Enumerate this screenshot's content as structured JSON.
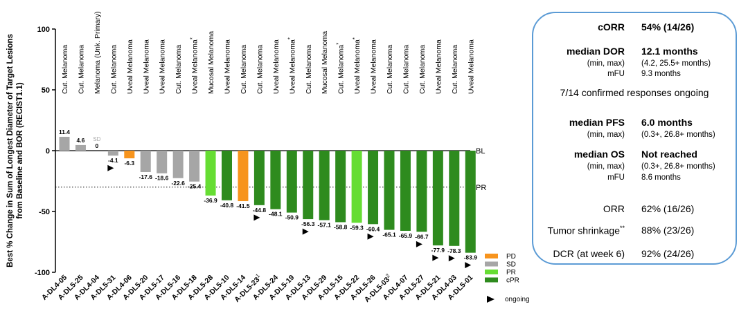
{
  "chart_data": {
    "type": "bar",
    "ylabel": "Best % Change in Sum of Longest Diameter of Target Lesions from Baseline and BOR (RECIST1.1)",
    "ylim": [
      -100,
      100
    ],
    "yticks": [
      100,
      50,
      0,
      -50,
      -100
    ],
    "grid": false,
    "reference_lines": [
      {
        "label": "BL",
        "value": 0,
        "style": "solid"
      },
      {
        "label": "PR",
        "value": -30,
        "style": "dotted"
      }
    ],
    "legend": {
      "placement": "bottom-right",
      "items": [
        {
          "key": "PD",
          "label": "PD",
          "color": "#f7941d"
        },
        {
          "key": "SD",
          "label": "SD",
          "color": "#a6a6a6"
        },
        {
          "key": "PR",
          "label": "PR",
          "color": "#66dd33"
        },
        {
          "key": "cPR",
          "label": "cPR",
          "color": "#2e8b1e"
        }
      ],
      "ongoing_label": "ongoing"
    },
    "bars": [
      {
        "id": "A-DL4-05",
        "diagnosis": "Cut. Melanoma",
        "value": 11.4,
        "label": "11.4",
        "response": "SD",
        "ongoing": false
      },
      {
        "id": "A-DL5-25",
        "diagnosis": "Cut. Melanoma",
        "value": 4.6,
        "label": "4.6",
        "response": "SD",
        "ongoing": false
      },
      {
        "id": "A-DL4-04",
        "diagnosis": "Melanoma (Unk. Primary)",
        "value": 0,
        "label": "0",
        "label_note": "SD",
        "response": "SD",
        "ongoing": false
      },
      {
        "id": "A-DL5-31",
        "diagnosis": "Cut. Melanoma",
        "value": -4.1,
        "label": "-4.1",
        "response": "SD",
        "ongoing": true
      },
      {
        "id": "A-DL4-06",
        "diagnosis": "Uveal Melanoma",
        "value": -6.3,
        "label": "-6.3",
        "response": "PD",
        "ongoing": false
      },
      {
        "id": "A-DL5-20",
        "diagnosis": "Uveal Melanoma",
        "value": -17.6,
        "label": "-17.6",
        "response": "SD",
        "ongoing": false
      },
      {
        "id": "A-DL5-17",
        "diagnosis": "Uveal Melanoma",
        "value": -18.6,
        "label": "-18.6",
        "response": "SD",
        "ongoing": false
      },
      {
        "id": "A-DL5-16",
        "diagnosis": "Cut. Melanoma",
        "value": -22.6,
        "label": "-22.6",
        "response": "SD",
        "ongoing": false
      },
      {
        "id": "A-DL5-18",
        "diagnosis": "Uveal Melanoma",
        "diagnosis_sup": "*",
        "value": -25.4,
        "label": "-25.4",
        "response": "SD",
        "ongoing": false
      },
      {
        "id": "A-DL5-28",
        "diagnosis": "Mucosal Melanoma",
        "value": -36.9,
        "label": "-36.9",
        "response": "PR",
        "ongoing": false
      },
      {
        "id": "A-DL5-10",
        "diagnosis": "Uveal Melanoma",
        "value": -40.8,
        "label": "-40.8",
        "response": "cPR",
        "ongoing": false
      },
      {
        "id": "A-DL5-14",
        "diagnosis": "Cut. Melanoma",
        "value": -41.5,
        "label": "-41.5",
        "response": "PD",
        "ongoing": false
      },
      {
        "id": "A-DL5-23",
        "id_sup": "1",
        "diagnosis": "Cut. Melanoma",
        "value": -44.8,
        "label": "-44.8",
        "response": "cPR",
        "ongoing": true
      },
      {
        "id": "A-DL5-24",
        "diagnosis": "Uveal Melanoma",
        "value": -48.1,
        "label": "-48.1",
        "response": "cPR",
        "ongoing": false
      },
      {
        "id": "A-DL5-19",
        "diagnosis": "Uveal Melanoma",
        "diagnosis_sup": "*",
        "value": -50.9,
        "label": "-50.9",
        "response": "cPR",
        "ongoing": false
      },
      {
        "id": "A-DL5-13",
        "diagnosis": "Cut. Melanoma",
        "value": -56.3,
        "label": "-56.3",
        "response": "cPR",
        "ongoing": true
      },
      {
        "id": "A-DL5-29",
        "diagnosis": "Mucosal Melanoma",
        "value": -57.1,
        "label": "-57.1",
        "response": "cPR",
        "ongoing": false
      },
      {
        "id": "A-DL5-15",
        "diagnosis": "Cut. Melanoma",
        "diagnosis_sup": "*",
        "value": -58.8,
        "label": "-58.8",
        "response": "cPR",
        "ongoing": false
      },
      {
        "id": "A-DL5-22",
        "diagnosis": "Uveal Melanoma",
        "diagnosis_sup": "*",
        "value": -59.3,
        "label": "-59.3",
        "response": "PR",
        "ongoing": false
      },
      {
        "id": "A-DL5-26",
        "diagnosis": "Uveal Melanoma",
        "value": -60.4,
        "label": "-60.4",
        "response": "cPR",
        "ongoing": true
      },
      {
        "id": "A-DL5-03",
        "id_sup": "2",
        "diagnosis": "Cut. Melanoma",
        "value": -65.1,
        "label": "-65.1",
        "response": "cPR",
        "ongoing": false
      },
      {
        "id": "A-DL4-07",
        "diagnosis": "Cut. Melanoma",
        "value": -65.9,
        "label": "-65.9",
        "response": "cPR",
        "ongoing": false
      },
      {
        "id": "A-DL5-27",
        "diagnosis": "Cut. Melanoma",
        "value": -66.7,
        "label": "-66.7",
        "response": "cPR",
        "ongoing": true
      },
      {
        "id": "A-DL5-21",
        "diagnosis": "Uveal Melanoma",
        "value": -77.9,
        "label": "-77.9",
        "response": "cPR",
        "ongoing": true
      },
      {
        "id": "A-DL4-03",
        "diagnosis": "Cut. Melanoma",
        "value": -78.3,
        "label": "-78.3",
        "response": "cPR",
        "ongoing": true
      },
      {
        "id": "A-DL5-01",
        "diagnosis": "Uveal Melanoma",
        "value": -83.9,
        "label": "-83.9",
        "response": "cPR",
        "ongoing": true
      }
    ]
  },
  "stats_panel": {
    "corr": {
      "label": "cORR",
      "value": "54% (14/26)"
    },
    "dor": {
      "label": "median DOR",
      "value": "12.1 months",
      "range_label": "(min, max)",
      "range_value": "(4.2, 25.5+ months)",
      "mfu_label": "mFU",
      "mfu_value": "9.3 months"
    },
    "ongoing_note": "7/14 confirmed responses ongoing",
    "pfs": {
      "label": "median PFS",
      "value": "6.0 months",
      "range_label": "(min, max)",
      "range_value": "(0.3+, 26.8+ months)"
    },
    "os": {
      "label": "median OS",
      "value": "Not reached",
      "range_label": "(min, max)",
      "range_value": "(0.3+, 26.8+ months)",
      "mfu_label": "mFU",
      "mfu_value": "8.6 months"
    },
    "orr": {
      "label": "ORR",
      "value": "62% (16/26)"
    },
    "tumor_shrinkage": {
      "label": "Tumor shrinkage",
      "label_sup": "**",
      "value": "88% (23/26)"
    },
    "dcr": {
      "label": "DCR (at week 6)",
      "value": "92% (24/26)"
    }
  }
}
